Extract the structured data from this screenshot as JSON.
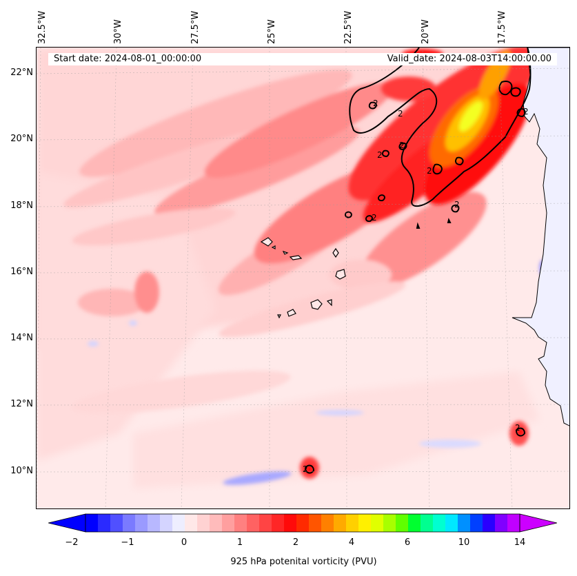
{
  "map": {
    "start_date": "Start date: 2024-08-01_00:00:00",
    "valid_date": "Valid_date: 2024-08-03T14:00:00.00",
    "lon_labels": [
      "32.5°W",
      "30°W",
      "27.5°W",
      "25°W",
      "22.5°W",
      "20°W",
      "17.5°W"
    ],
    "lat_labels": [
      "22°N",
      "20°N",
      "18°N",
      "16°N",
      "14°N",
      "12°N",
      "10°N"
    ],
    "contour_label": "2",
    "colorbar": {
      "title": "925 hPa potenital vorticity (PVU)",
      "tick_labels": [
        "−2",
        "−1",
        "0",
        "1",
        "2",
        "4",
        "6",
        "10",
        "14"
      ],
      "colors": [
        "#0000ff",
        "#2a2aff",
        "#5050ff",
        "#7a7aff",
        "#9a9aff",
        "#b8b8ff",
        "#d4d4ff",
        "#eeeeff",
        "#ffe8e8",
        "#ffd2d2",
        "#ffbbbb",
        "#ff9f9f",
        "#ff8080",
        "#ff6262",
        "#ff4444",
        "#ff2626",
        "#ff0a0a",
        "#ff2a00",
        "#ff5500",
        "#ff8000",
        "#ffaa00",
        "#ffd000",
        "#fff000",
        "#e0ff00",
        "#a8ff00",
        "#60ff00",
        "#00ff30",
        "#00ff90",
        "#00ffd0",
        "#00e8ff",
        "#0090ff",
        "#0040ff",
        "#2a00ff",
        "#8000ff",
        "#c000ff"
      ],
      "arrow_low": "#0000ff",
      "arrow_high": "#cc00ff"
    }
  }
}
